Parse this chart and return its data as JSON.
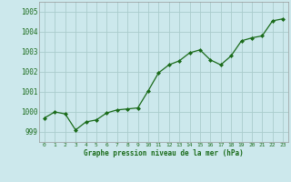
{
  "x": [
    0,
    1,
    2,
    3,
    4,
    5,
    6,
    7,
    8,
    9,
    10,
    11,
    12,
    13,
    14,
    15,
    16,
    17,
    18,
    19,
    20,
    21,
    22,
    23
  ],
  "y": [
    999.7,
    1000.0,
    999.9,
    999.1,
    999.5,
    999.6,
    999.95,
    1000.1,
    1000.15,
    1000.2,
    1001.05,
    1001.95,
    1002.35,
    1002.55,
    1002.95,
    1003.1,
    1002.6,
    1002.35,
    1002.8,
    1003.55,
    1003.7,
    1003.8,
    1004.55,
    1004.65
  ],
  "line_color": "#1a6b1a",
  "marker_color": "#1a6b1a",
  "bg_color": "#cce8ec",
  "grid_color": "#aacccc",
  "xlabel": "Graphe pression niveau de la mer (hPa)",
  "xlabel_color": "#1a6b1a",
  "tick_color": "#1a6b1a",
  "ylim": [
    998.5,
    1005.5
  ],
  "yticks": [
    999,
    1000,
    1001,
    1002,
    1003,
    1004,
    1005
  ],
  "figsize": [
    3.2,
    2.0
  ],
  "dpi": 100
}
